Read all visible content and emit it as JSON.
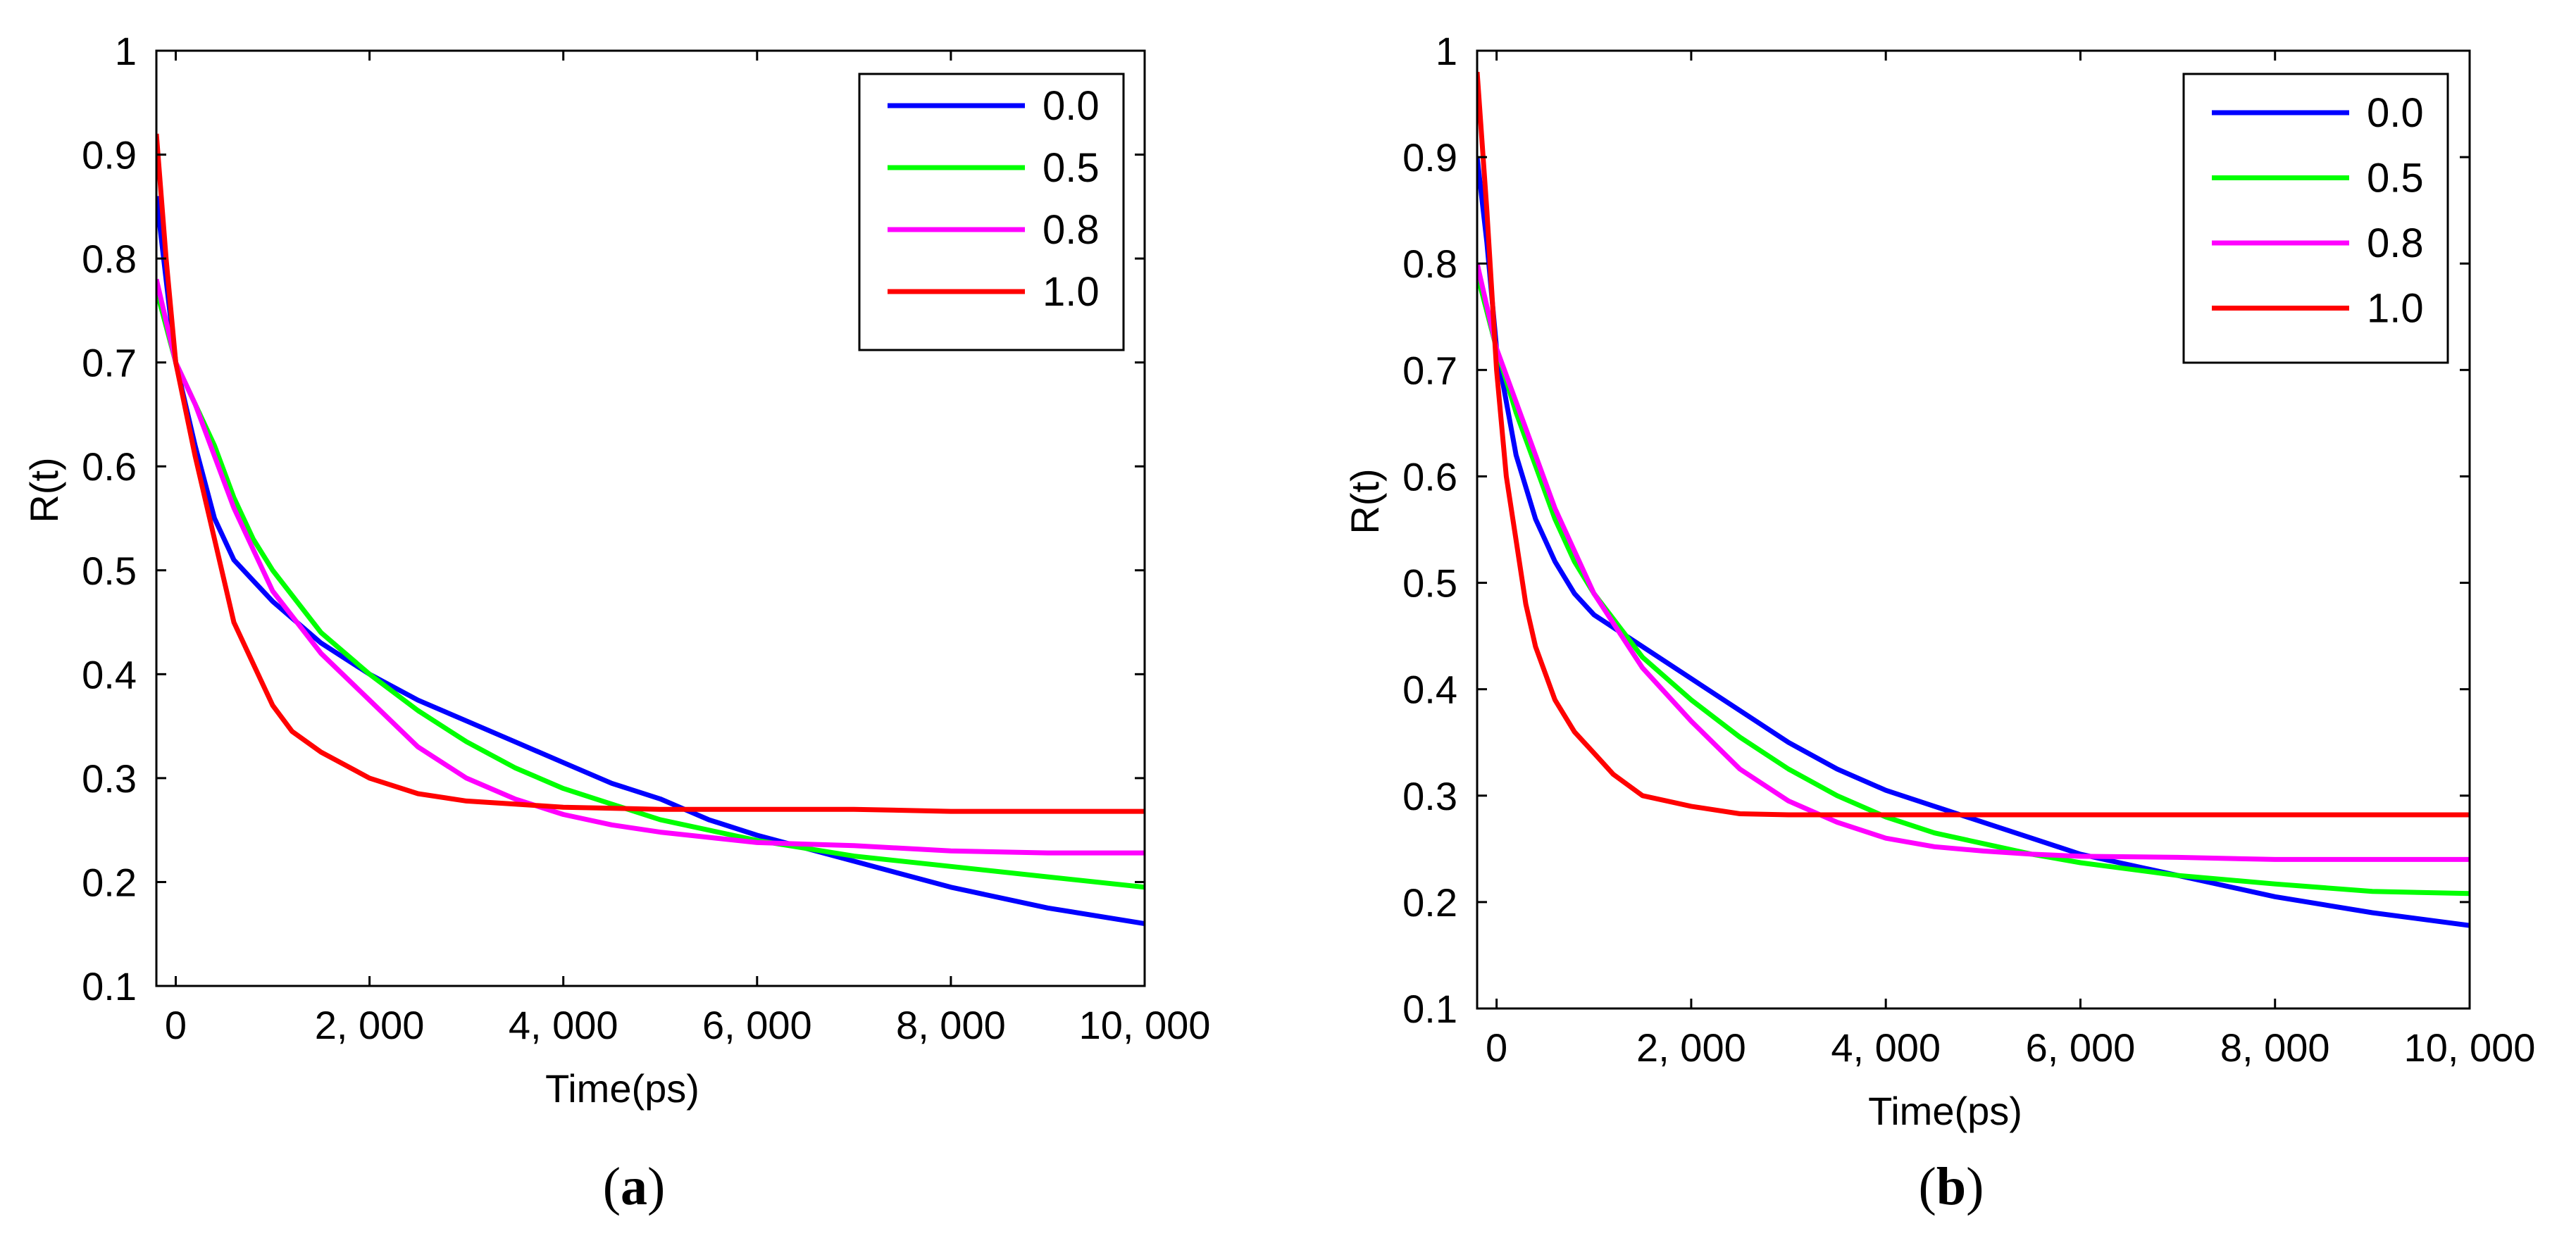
{
  "chart_data": [
    {
      "type": "line",
      "panel_label": "a",
      "xlabel": "Time(ps)",
      "ylabel": "R(t)",
      "xlim": [
        -200,
        10000
      ],
      "ylim": [
        0.1,
        1.0
      ],
      "xticks": [
        0,
        2000,
        4000,
        6000,
        8000,
        10000
      ],
      "xtick_labels": [
        "0",
        "2, 000",
        "4, 000",
        "6, 000",
        "8, 000",
        "10, 000"
      ],
      "yticks": [
        0.1,
        0.2,
        0.3,
        0.4,
        0.5,
        0.6,
        0.7,
        0.8,
        0.9,
        1.0
      ],
      "ytick_labels": [
        "0.1",
        "0.2",
        "0.3",
        "0.4",
        "0.5",
        "0.6",
        "0.7",
        "0.8",
        "0.9",
        "1"
      ],
      "legend_position": "top-right",
      "series": [
        {
          "name": "0.0",
          "color": "#0000ff",
          "x": [
            -200,
            0,
            200,
            400,
            600,
            800,
            1000,
            1500,
            2000,
            2500,
            3000,
            3500,
            4000,
            4500,
            5000,
            5500,
            6000,
            7000,
            8000,
            9000,
            10000
          ],
          "y": [
            0.86,
            0.7,
            0.62,
            0.55,
            0.51,
            0.49,
            0.47,
            0.43,
            0.4,
            0.375,
            0.355,
            0.335,
            0.315,
            0.295,
            0.28,
            0.26,
            0.245,
            0.22,
            0.195,
            0.175,
            0.16
          ]
        },
        {
          "name": "0.5",
          "color": "#00ff00",
          "x": [
            -200,
            0,
            200,
            400,
            600,
            800,
            1000,
            1500,
            2000,
            2500,
            3000,
            3500,
            4000,
            4500,
            5000,
            5500,
            6000,
            7000,
            8000,
            9000,
            10000
          ],
          "y": [
            0.77,
            0.7,
            0.66,
            0.62,
            0.57,
            0.53,
            0.5,
            0.44,
            0.4,
            0.365,
            0.335,
            0.31,
            0.29,
            0.275,
            0.26,
            0.25,
            0.24,
            0.225,
            0.215,
            0.205,
            0.195
          ]
        },
        {
          "name": "0.8",
          "color": "#ff00ff",
          "x": [
            -200,
            0,
            200,
            400,
            600,
            800,
            1000,
            1500,
            2000,
            2500,
            3000,
            3500,
            4000,
            4500,
            5000,
            5500,
            6000,
            7000,
            8000,
            9000,
            10000
          ],
          "y": [
            0.78,
            0.7,
            0.66,
            0.61,
            0.56,
            0.52,
            0.48,
            0.42,
            0.375,
            0.33,
            0.3,
            0.28,
            0.265,
            0.255,
            0.248,
            0.243,
            0.238,
            0.235,
            0.23,
            0.228,
            0.228
          ]
        },
        {
          "name": "1.0",
          "color": "#ff0000",
          "x": [
            -200,
            -100,
            0,
            200,
            400,
            600,
            800,
            1000,
            1200,
            1500,
            2000,
            2500,
            3000,
            3500,
            4000,
            5000,
            6000,
            7000,
            8000,
            9000,
            10000
          ],
          "y": [
            0.92,
            0.8,
            0.7,
            0.61,
            0.53,
            0.45,
            0.41,
            0.37,
            0.345,
            0.325,
            0.3,
            0.285,
            0.278,
            0.275,
            0.272,
            0.27,
            0.27,
            0.27,
            0.268,
            0.268,
            0.268
          ]
        }
      ]
    },
    {
      "type": "line",
      "panel_label": "b",
      "xlabel": "Time(ps)",
      "ylabel": "R(t)",
      "xlim": [
        -200,
        10000
      ],
      "ylim": [
        0.1,
        1.0
      ],
      "xticks": [
        0,
        2000,
        4000,
        6000,
        8000,
        10000
      ],
      "xtick_labels": [
        "0",
        "2, 000",
        "4, 000",
        "6, 000",
        "8, 000",
        "10, 000"
      ],
      "yticks": [
        0.1,
        0.2,
        0.3,
        0.4,
        0.5,
        0.6,
        0.7,
        0.8,
        0.9,
        1.0
      ],
      "ytick_labels": [
        "0.1",
        "0.2",
        "0.3",
        "0.4",
        "0.5",
        "0.6",
        "0.7",
        "0.8",
        "0.9",
        "1"
      ],
      "legend_position": "top-right",
      "series": [
        {
          "name": "0.0",
          "color": "#0000ff",
          "x": [
            -200,
            -100,
            0,
            200,
            400,
            600,
            800,
            1000,
            1500,
            2000,
            2500,
            3000,
            3500,
            4000,
            4500,
            5000,
            5500,
            6000,
            7000,
            8000,
            9000,
            10000
          ],
          "y": [
            0.9,
            0.82,
            0.72,
            0.62,
            0.56,
            0.52,
            0.49,
            0.47,
            0.44,
            0.41,
            0.38,
            0.35,
            0.325,
            0.305,
            0.29,
            0.275,
            0.26,
            0.245,
            0.225,
            0.205,
            0.19,
            0.178
          ]
        },
        {
          "name": "0.5",
          "color": "#00ff00",
          "x": [
            -200,
            0,
            200,
            400,
            600,
            800,
            1000,
            1500,
            2000,
            2500,
            3000,
            3500,
            4000,
            4500,
            5000,
            5500,
            6000,
            7000,
            8000,
            9000,
            10000
          ],
          "y": [
            0.79,
            0.72,
            0.66,
            0.61,
            0.56,
            0.52,
            0.49,
            0.43,
            0.39,
            0.355,
            0.325,
            0.3,
            0.28,
            0.265,
            0.255,
            0.245,
            0.237,
            0.225,
            0.217,
            0.21,
            0.208
          ]
        },
        {
          "name": "0.8",
          "color": "#ff00ff",
          "x": [
            -200,
            0,
            200,
            400,
            600,
            800,
            1000,
            1500,
            2000,
            2500,
            3000,
            3500,
            4000,
            4500,
            5000,
            5500,
            6000,
            7000,
            8000,
            9000,
            10000
          ],
          "y": [
            0.8,
            0.72,
            0.67,
            0.62,
            0.57,
            0.53,
            0.49,
            0.42,
            0.37,
            0.325,
            0.295,
            0.275,
            0.26,
            0.252,
            0.248,
            0.245,
            0.243,
            0.242,
            0.24,
            0.24,
            0.24
          ]
        },
        {
          "name": "1.0",
          "color": "#ff0000",
          "x": [
            -200,
            -100,
            0,
            100,
            200,
            300,
            400,
            600,
            800,
            1000,
            1200,
            1500,
            2000,
            2500,
            3000,
            4000,
            5000,
            6000,
            7000,
            8000,
            9000,
            10000
          ],
          "y": [
            0.98,
            0.85,
            0.7,
            0.6,
            0.54,
            0.48,
            0.44,
            0.39,
            0.36,
            0.34,
            0.32,
            0.3,
            0.29,
            0.283,
            0.282,
            0.282,
            0.282,
            0.282,
            0.282,
            0.282,
            0.282,
            0.282
          ]
        }
      ]
    }
  ]
}
